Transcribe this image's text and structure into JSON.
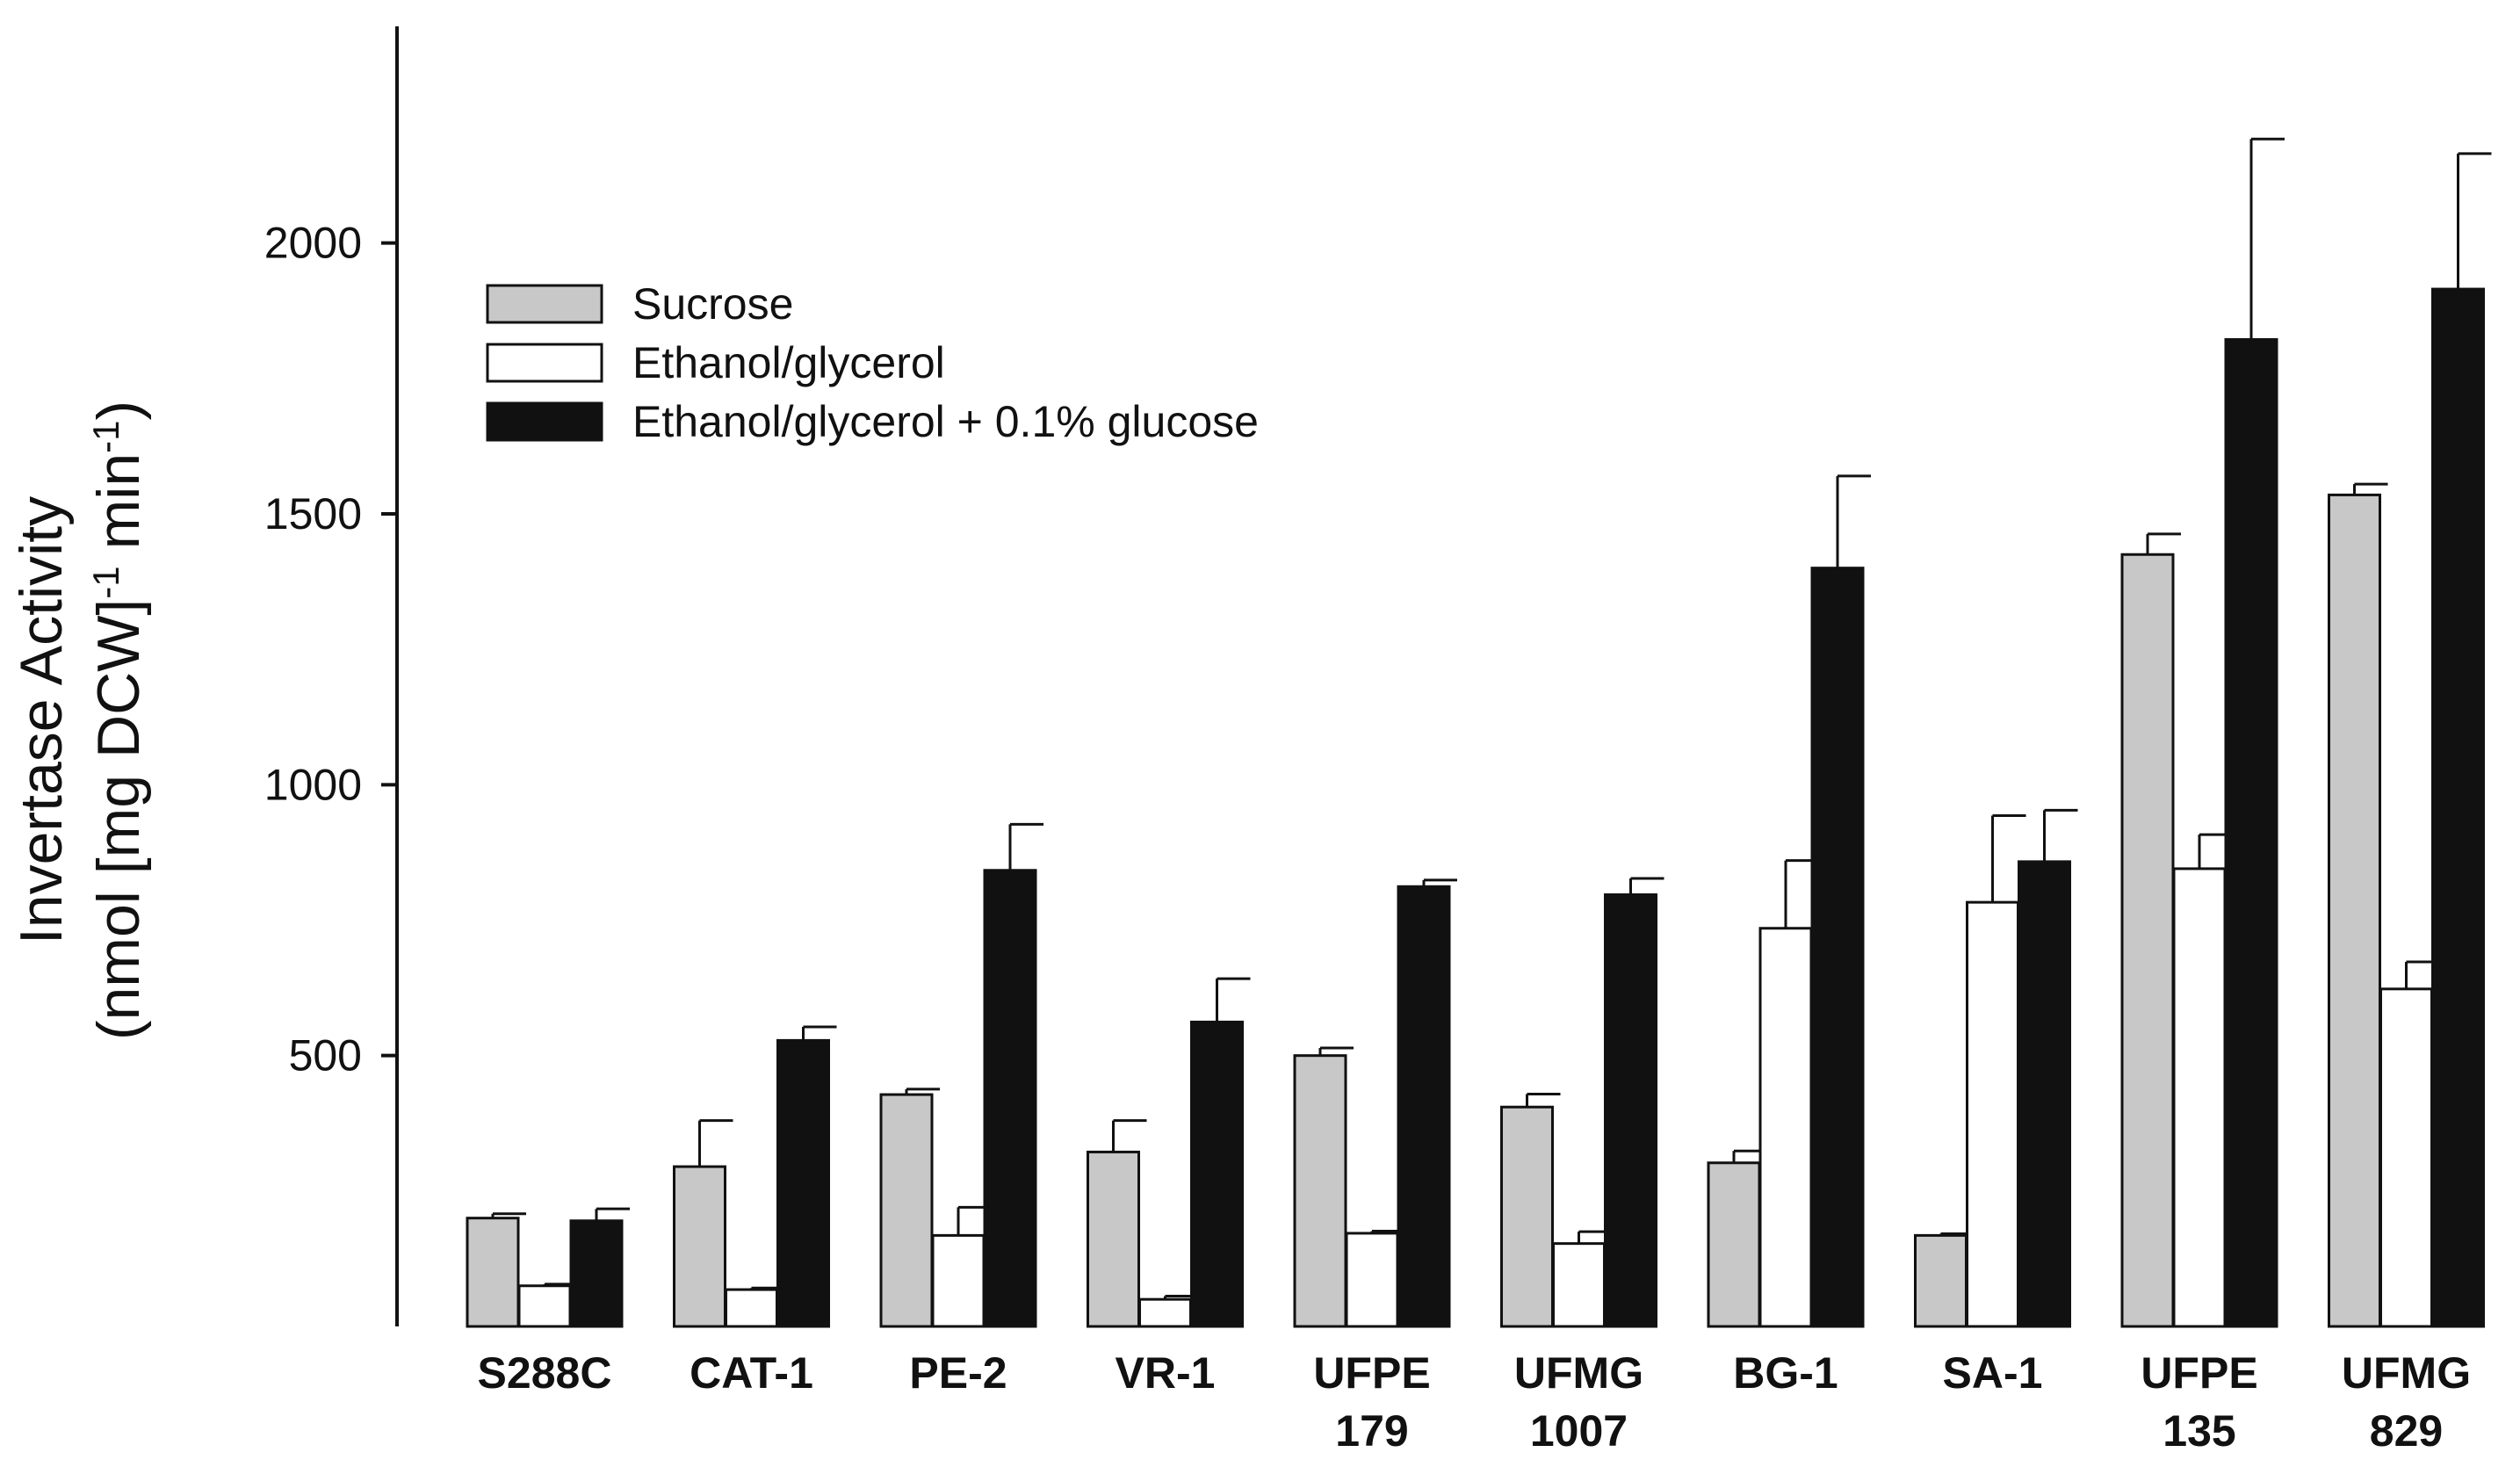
{
  "chart_data": {
    "type": "bar",
    "title": "",
    "xlabel": "",
    "ylabel_line1": "Invertase Activity",
    "ylabel_line2_prefix": "(nmol [mg DCW]",
    "ylabel_sup1": "-1",
    "ylabel_mid": " min",
    "ylabel_sup2": "-1",
    "ylabel_suffix": ")",
    "ylim": [
      0,
      2400
    ],
    "yticks": [
      500,
      1000,
      1500,
      2000
    ],
    "ytick_labels": [
      "500",
      "1000",
      "1500",
      "2000"
    ],
    "legend_position": "top-left",
    "categories": [
      [
        "S288C"
      ],
      [
        "CAT-1"
      ],
      [
        "PE-2"
      ],
      [
        "VR-1"
      ],
      [
        "UFPE",
        "179"
      ],
      [
        "UFMG",
        "1007"
      ],
      [
        "BG-1"
      ],
      [
        "SA-1"
      ],
      [
        "UFPE",
        "135"
      ],
      [
        "UFMG",
        "829"
      ]
    ],
    "series": [
      {
        "name": "Sucrose",
        "color": "#c8c8c8",
        "values": [
          200,
          295,
          428,
          322,
          500,
          405,
          302,
          168,
          1425,
          1535
        ],
        "errors": [
          8,
          85,
          10,
          58,
          14,
          24,
          22,
          3,
          38,
          20
        ]
      },
      {
        "name": "Ethanol/glycerol",
        "color": "#ffffff",
        "values": [
          75,
          68,
          168,
          50,
          172,
          153,
          735,
          783,
          845,
          623
        ],
        "errors": [
          3,
          3,
          52,
          6,
          4,
          22,
          125,
          160,
          63,
          50
        ]
      },
      {
        "name": "Ethanol/glycerol + 0.1% glucose",
        "color": "#111111",
        "values": [
          195,
          528,
          842,
          562,
          812,
          797,
          1400,
          858,
          1822,
          1915
        ],
        "errors": [
          22,
          25,
          85,
          80,
          12,
          30,
          170,
          95,
          370,
          250
        ]
      }
    ]
  }
}
